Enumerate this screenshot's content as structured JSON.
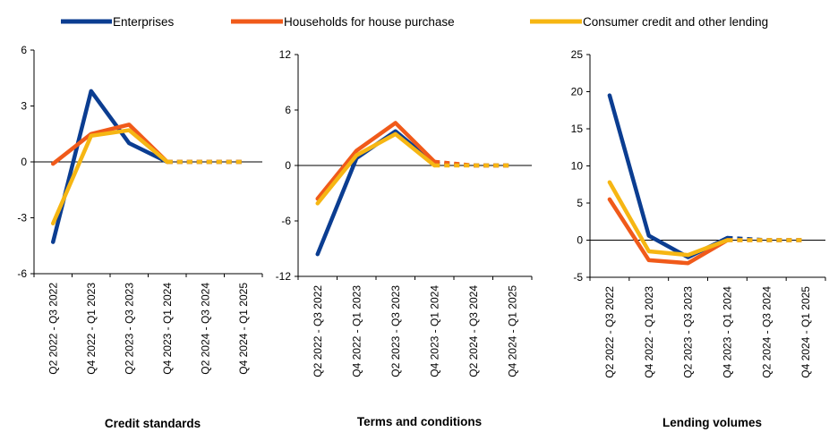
{
  "legend": {
    "enterprises": "Enterprises",
    "households": "Households for house purchase",
    "consumer": "Consumer credit and other lending"
  },
  "colors": {
    "enterprises": "#0b3d91",
    "households": "#f05a1a",
    "consumer": "#f6b613"
  },
  "chart_data": [
    {
      "type": "line",
      "title": "Credit standards",
      "categories": [
        "Q2 2022 - Q3 2022",
        "Q4 2022 - Q1 2023",
        "Q2 2023 - Q3 2023",
        "Q4 2023 - Q1 2024",
        "Q2 2024 - Q3 2024",
        "Q4 2024 - Q1 2025"
      ],
      "ylim": [
        -6,
        6
      ],
      "yticks": [
        "6",
        "3",
        "0",
        "-3",
        "-6"
      ],
      "series": [
        {
          "name": "Enterprises",
          "key": "enterprises",
          "values": [
            -4.3,
            3.8,
            1.0,
            0.0,
            0.0,
            0.0
          ]
        },
        {
          "name": "Households for house purchase",
          "key": "households",
          "values": [
            -0.1,
            1.5,
            2.0,
            0.0,
            0.0,
            0.0
          ]
        },
        {
          "name": "Consumer credit and other lending",
          "key": "consumer",
          "values": [
            -3.3,
            1.4,
            1.7,
            0.0,
            0.0,
            0.0
          ]
        }
      ]
    },
    {
      "type": "line",
      "title": "Terms and conditions",
      "categories": [
        "Q2 2022 - Q3 2022",
        "Q4 2022 - Q1 2023",
        "Q2 2023 - Q3 2023",
        "Q4 2023 - Q1 2024",
        "Q2 2024 - Q3 2024",
        "Q4 2024 - Q1 2025"
      ],
      "ylim": [
        -12,
        12
      ],
      "yticks": [
        "12",
        "6",
        "0",
        "-6",
        "-12"
      ],
      "series": [
        {
          "name": "Enterprises",
          "key": "enterprises",
          "values": [
            -9.6,
            0.8,
            3.7,
            0.2,
            0.0,
            0.0
          ]
        },
        {
          "name": "Households for house purchase",
          "key": "households",
          "values": [
            -3.6,
            1.6,
            4.6,
            0.4,
            0.0,
            0.0
          ]
        },
        {
          "name": "Consumer credit and other lending",
          "key": "consumer",
          "values": [
            -4.1,
            1.1,
            3.4,
            0.0,
            0.0,
            0.0
          ]
        }
      ]
    },
    {
      "type": "line",
      "title": "Lending volumes",
      "categories": [
        "Q2 2022 - Q3 2022",
        "Q4 2022 - Q1 2023",
        "Q2 2023 - Q3 2023",
        "Q4 2023 - Q1 2024",
        "Q2 2024 - Q3 2024",
        "Q4 2024 - Q1 2025"
      ],
      "ylim": [
        -5,
        25
      ],
      "yticks": [
        "25",
        "20",
        "15",
        "10",
        "5",
        "0",
        "-5"
      ],
      "series": [
        {
          "name": "Enterprises",
          "key": "enterprises",
          "values": [
            19.5,
            0.6,
            -2.3,
            0.3,
            0.0,
            0.0
          ]
        },
        {
          "name": "Households for house purchase",
          "key": "households",
          "values": [
            5.5,
            -2.7,
            -3.1,
            0.0,
            0.0,
            0.0
          ]
        },
        {
          "name": "Consumer credit and other lending",
          "key": "consumer",
          "values": [
            7.8,
            -1.5,
            -2.0,
            0.0,
            0.0,
            0.0
          ]
        }
      ]
    }
  ]
}
